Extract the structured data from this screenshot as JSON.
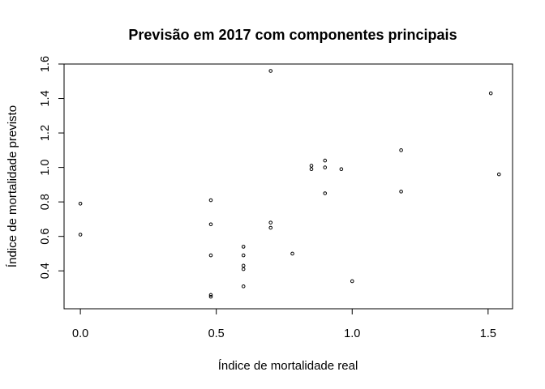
{
  "chart_data": {
    "type": "scatter",
    "title": "Previsão em 2017 com componentes principais",
    "xlabel": "Índice de mortalidade real",
    "ylabel": "Índice de mortalidade previsto",
    "xlim": [
      -0.06,
      1.59
    ],
    "ylim": [
      0.18,
      1.6
    ],
    "x_ticks": [
      0.0,
      0.5,
      1.0,
      1.5
    ],
    "x_tick_labels": [
      "0.0",
      "0.5",
      "1.0",
      "1.5"
    ],
    "y_ticks": [
      0.4,
      0.6,
      0.8,
      1.0,
      1.2,
      1.4,
      1.6
    ],
    "y_tick_labels": [
      "0.4",
      "0.6",
      "0.8",
      "1.0",
      "1.2",
      "1.4",
      "1.6"
    ],
    "grid": false,
    "legend": "none",
    "marker": "open-circle",
    "points": [
      {
        "x": 0.0,
        "y": 0.79
      },
      {
        "x": 0.0,
        "y": 0.61
      },
      {
        "x": 0.48,
        "y": 0.81
      },
      {
        "x": 0.48,
        "y": 0.67
      },
      {
        "x": 0.48,
        "y": 0.49
      },
      {
        "x": 0.48,
        "y": 0.26
      },
      {
        "x": 0.48,
        "y": 0.25
      },
      {
        "x": 0.6,
        "y": 0.54
      },
      {
        "x": 0.6,
        "y": 0.49
      },
      {
        "x": 0.6,
        "y": 0.43
      },
      {
        "x": 0.6,
        "y": 0.41
      },
      {
        "x": 0.6,
        "y": 0.31
      },
      {
        "x": 0.7,
        "y": 1.56
      },
      {
        "x": 0.7,
        "y": 0.68
      },
      {
        "x": 0.7,
        "y": 0.65
      },
      {
        "x": 0.78,
        "y": 0.5
      },
      {
        "x": 0.85,
        "y": 1.01
      },
      {
        "x": 0.85,
        "y": 0.99
      },
      {
        "x": 0.9,
        "y": 1.04
      },
      {
        "x": 0.9,
        "y": 1.0
      },
      {
        "x": 0.9,
        "y": 0.85
      },
      {
        "x": 0.96,
        "y": 0.99
      },
      {
        "x": 1.0,
        "y": 0.34
      },
      {
        "x": 1.18,
        "y": 1.1
      },
      {
        "x": 1.18,
        "y": 0.86
      },
      {
        "x": 1.51,
        "y": 1.43
      },
      {
        "x": 1.54,
        "y": 0.96
      }
    ]
  }
}
